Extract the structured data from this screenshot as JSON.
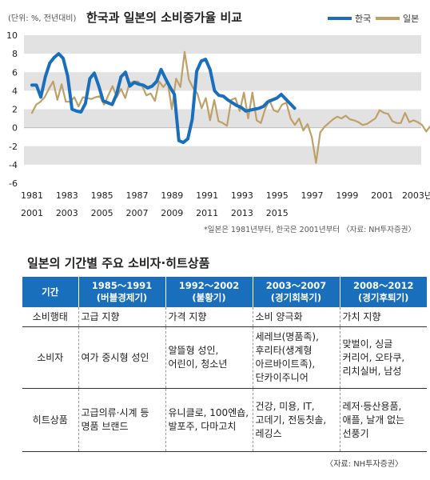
{
  "chart_data": {
    "type": "line",
    "title": "한국과 일본의 소비증가율 비교",
    "unit_label": "(단위: %, 전년대비)",
    "ylim": [
      -6,
      10
    ],
    "yticks": [
      -6,
      -4,
      -2,
      0,
      2,
      4,
      6,
      8,
      10
    ],
    "x_axis_japan": {
      "labels": [
        "1981",
        "1983",
        "1985",
        "1987",
        "1989",
        "1991",
        "1993",
        "1995",
        "1997",
        "1999",
        "2001",
        "2003년"
      ]
    },
    "x_axis_korea": {
      "labels": [
        "2001",
        "2003",
        "2005",
        "2007",
        "2009",
        "2011",
        "2013",
        "2015"
      ]
    },
    "grid": "horizontal bands",
    "legend_position": "top-right",
    "series": [
      {
        "name": "한국",
        "color": "#1a6fbd",
        "x_start": 2001,
        "x_end": 2016,
        "values": [
          4.6,
          4.6,
          3.3,
          5.5,
          7.0,
          7.6,
          8.0,
          7.5,
          5.6,
          2.0,
          1.8,
          1.7,
          2.6,
          5.3,
          5.9,
          4.5,
          2.9,
          2.7,
          2.5,
          3.6,
          5.5,
          6.0,
          4.5,
          4.9,
          4.7,
          4.6,
          4.3,
          4.5,
          5.0,
          6.3,
          5.3,
          4.4,
          3.6,
          -1.4,
          -1.6,
          -1.2,
          0.9,
          6.1,
          7.2,
          7.4,
          6.3,
          4.0,
          3.5,
          3.4,
          3.0,
          2.7,
          2.4,
          2.2,
          1.8,
          1.9,
          2.0,
          2.1,
          2.3,
          2.8,
          3.0,
          3.2,
          3.6,
          3.1,
          2.6,
          2.1
        ]
      },
      {
        "name": "일본",
        "color": "#bfa068",
        "x_start": 1981,
        "x_end": 2004,
        "values": [
          1.6,
          2.5,
          2.8,
          3.3,
          4.2,
          5.0,
          3.0,
          4.7,
          2.8,
          2.8,
          3.3,
          2.3,
          3.3,
          3.2,
          3.1,
          3.3,
          3.4,
          2.5,
          3.5,
          4.5,
          3.3,
          4.2,
          3.2,
          4.8,
          5.0,
          5.0,
          4.5,
          3.5,
          3.7,
          2.9,
          5.0,
          4.4,
          5.0,
          2.0,
          5.3,
          4.4,
          8.2,
          5.2,
          4.3,
          3.7,
          2.1,
          3.2,
          0.8,
          3.0,
          0.7,
          0.5,
          0.2,
          3.0,
          3.2,
          1.8,
          3.8,
          1.0,
          3.8,
          0.8,
          0.5,
          2.0,
          3.0,
          1.9,
          1.7,
          2.5,
          2.7,
          1.0,
          0.3,
          1.0,
          -0.3,
          0.4,
          -1.0,
          -3.8,
          -0.5,
          0.1,
          0.5,
          0.9,
          1.2,
          1.0,
          1.3,
          0.9,
          0.8,
          0.6,
          0.3,
          0.4,
          0.7,
          1.0,
          1.9,
          1.6,
          1.5,
          0.7,
          0.5,
          0.5,
          1.6,
          0.6,
          0.8,
          0.6,
          0.3,
          -0.4,
          0.2,
          1.3
        ]
      }
    ],
    "note": "*일본은 1981년부터, 한국은 2001년부터 〈자료: NH투자증권〉"
  },
  "table": {
    "title": "일본의 기간별 주요 소비자·히트상품",
    "corner_header": "기간",
    "columns": [
      {
        "period": "1985～1991",
        "subtitle": "(버블경제기)"
      },
      {
        "period": "1992～2002",
        "subtitle": "(불황기)"
      },
      {
        "period": "2003～2007",
        "subtitle": "(경기회복기)"
      },
      {
        "period": "2008～2012",
        "subtitle": "(경기후퇴기)"
      }
    ],
    "rows": [
      {
        "header": "소비행태",
        "cells": [
          "고급 지향",
          "가격 지향",
          "소비 양극화",
          "가치 지향"
        ]
      },
      {
        "header": "소비자",
        "cells": [
          "여가 중시형 성인",
          "알뜰형 성인, 어린이, 청소년",
          "세레브(명품족), 후리타(생계형 아르바이트족), 단카이주니어",
          "맞벌이, 싱글 커리어, 오타쿠, 리치실버, 남성"
        ]
      },
      {
        "header": "히트상품",
        "cells": [
          "고급의류·시계 등 명품 브랜드",
          "유니클로, 100엔숍, 발포주, 다마고치",
          "건강, 미용, IT, 고데기, 전동칫솔, 레깅스",
          "레저·등산용품, 애플, 날개 없는 선풍기"
        ]
      }
    ],
    "source": "〈자료: NH투자증권〉"
  }
}
